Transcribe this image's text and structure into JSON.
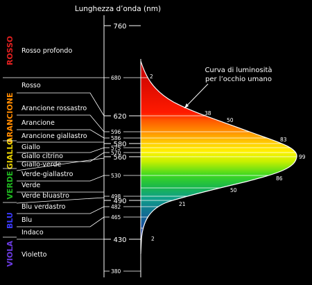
{
  "title": "Lunghezza d’onda (nm)",
  "groups": [
    {
      "name": "ROSSO",
      "color": "#e02020"
    },
    {
      "name": "ARANCIONE",
      "color": "#ff8a00"
    },
    {
      "name": "GIALLO",
      "color": "#e8d000"
    },
    {
      "name": "VERDE",
      "color": "#1fb41f"
    },
    {
      "name": "BLU",
      "color": "#3a3aff"
    },
    {
      "name": "VIOLA",
      "color": "#6a3ae0"
    }
  ],
  "color_names": [
    "Rosso profondo",
    "Rosso",
    "Arancione rossastro",
    "Arancione",
    "Arancione giallastro",
    "Giallo",
    "Giallo citrino",
    "Giallo-verde",
    "Verde-giallastro",
    "Verde",
    "Verde bluastro",
    "Blu verdastro",
    "Blu",
    "Indaco",
    "Violetto"
  ],
  "wavelength_ticks": {
    "major": [
      "760",
      "620",
      "580",
      "560",
      "490",
      "430"
    ],
    "minor": [
      "680",
      "596",
      "586",
      "575",
      "570",
      "530",
      "498",
      "482",
      "465",
      "380"
    ]
  },
  "curve": {
    "label_line1": "Curva di luminosità",
    "label_line2": "per l’occhio umano",
    "values": [
      "2",
      "38",
      "50",
      "83",
      "99",
      "86",
      "50",
      "21",
      "2"
    ]
  }
}
